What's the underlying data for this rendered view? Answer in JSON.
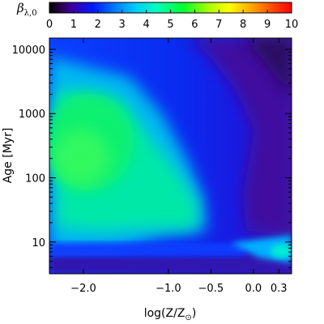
{
  "chart_data": {
    "type": "heatmap",
    "title": "",
    "xlabel": "log(Z/Z⊙)",
    "xlabel_parts": {
      "prefix": "log(Z/Z",
      "subscript": "⊙",
      "suffix": ")"
    },
    "ylabel": "Age [Myr]",
    "y_scale": "log",
    "xlim": [
      -2.4,
      0.45
    ],
    "ylim_myr": [
      3.2,
      15000
    ],
    "x_ticks": [
      {
        "value": -2.0,
        "label": "−2.0"
      },
      {
        "value": -1.0,
        "label": "−1.0"
      },
      {
        "value": -0.5,
        "label": "−0.5"
      },
      {
        "value": 0.0,
        "label": "0.0"
      },
      {
        "value": 0.3,
        "label": "0.3"
      }
    ],
    "y_ticks": [
      {
        "value": 10,
        "label": "10"
      },
      {
        "value": 100,
        "label": "100"
      },
      {
        "value": 1000,
        "label": "1000"
      },
      {
        "value": 10000,
        "label": "10000"
      }
    ],
    "colorbar": {
      "label_main": "β",
      "label_sub": "λ,0",
      "min": 0,
      "max": 10,
      "ticks": [
        "0",
        "1",
        "2",
        "3",
        "4",
        "5",
        "6",
        "7",
        "8",
        "9",
        "10"
      ],
      "colormap": "rainbow (black-purple-blue-cyan-green-yellow-orange-red)"
    },
    "features": [
      {
        "region": "low metallicity, 100-1000 Myr",
        "beta_approx": 5.5
      },
      {
        "region": "log Z -0.7 to -0.5, 15-30 Myr",
        "beta_approx": 4.0
      },
      {
        "region": "high metallicity, >5000 Myr",
        "beta_approx": 0.5
      },
      {
        "region": "ages < 5 Myr",
        "beta_approx": 1.5
      },
      {
        "region": "log Z 0.1-0.3, ~6-9 Myr",
        "beta_approx": 3.5
      }
    ]
  }
}
